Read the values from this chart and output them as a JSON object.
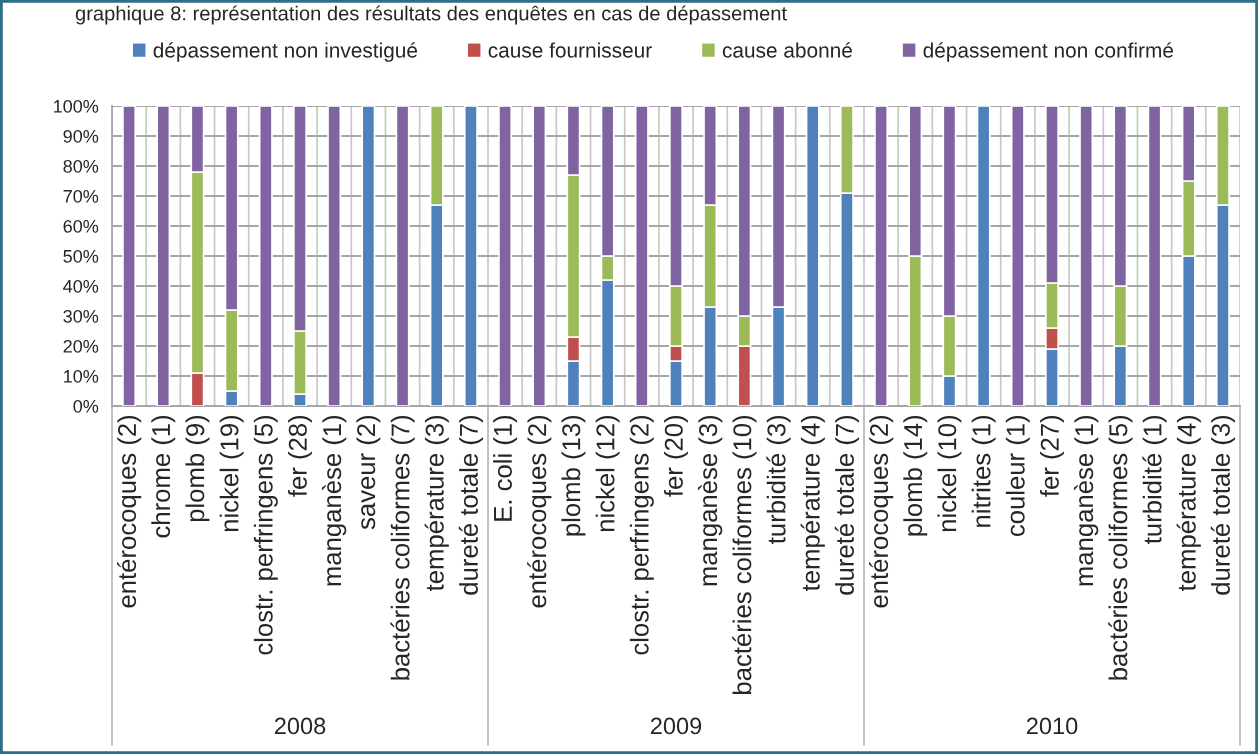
{
  "chart_data": {
    "type": "bar",
    "title": "graphique 8: représentation des résultats des enquêtes en cas de dépassement",
    "stacked": true,
    "categories": [
      "entérocoques (2)",
      "chrome (1)",
      "plomb (9)",
      "nickel (19)",
      "clostr. perfringens (5)",
      "fer (28)",
      "manganèse (1)",
      "saveur (2)",
      "bactéries coliformes (7)",
      "température (3)",
      "dureté totale (7)",
      "E. coli (1)",
      "entérocoques (2)",
      "plomb (13)",
      "nickel (12)",
      "clostr. perfringens (2)",
      "fer (20)",
      "manganèse (3)",
      "bactéries coliformes (10)",
      "turbidité (3)",
      "température (4)",
      "dureté totale (7)",
      "entérocoques (2)",
      "plomb (14)",
      "nickel (10)",
      "nitrites (1)",
      "couleur (1)",
      "fer (27)",
      "manganèse (1)",
      "bactéries coliformes (5)",
      "turbidité (1)",
      "température (4)",
      "dureté totale (3)"
    ],
    "series": [
      {
        "name": "dépassement non investigué",
        "color": "#4f81bd",
        "values": [
          null,
          null,
          null,
          5,
          null,
          4,
          null,
          100,
          null,
          67,
          100,
          null,
          null,
          15,
          42,
          null,
          15,
          33,
          null,
          33,
          100,
          71,
          null,
          null,
          10,
          100,
          null,
          19,
          null,
          20,
          null,
          50,
          67
        ]
      },
      {
        "name": "cause fournisseur",
        "color": "#c0504d",
        "values": [
          null,
          null,
          11,
          null,
          null,
          null,
          null,
          null,
          null,
          null,
          null,
          null,
          null,
          8,
          null,
          null,
          5,
          null,
          20,
          null,
          null,
          null,
          null,
          null,
          null,
          null,
          null,
          7,
          null,
          null,
          null,
          null,
          null
        ]
      },
      {
        "name": "cause abonné",
        "color": "#9bbb59",
        "values": [
          null,
          null,
          67,
          27,
          null,
          21,
          null,
          null,
          null,
          33,
          null,
          null,
          null,
          54,
          8,
          null,
          20,
          34,
          10,
          null,
          null,
          29,
          null,
          50,
          20,
          null,
          null,
          15,
          null,
          20,
          null,
          25,
          33
        ]
      },
      {
        "name": "dépassement non confirmé",
        "color": "#8064a2",
        "values": [
          100,
          100,
          22,
          68,
          100,
          75,
          100,
          null,
          100,
          null,
          null,
          100,
          100,
          23,
          50,
          100,
          60,
          33,
          70,
          67,
          null,
          null,
          100,
          50,
          70,
          null,
          100,
          59,
          100,
          60,
          100,
          25,
          null
        ]
      }
    ],
    "ylim": [
      0,
      100
    ],
    "yticks": [
      {
        "value": 0,
        "label": "0%"
      },
      {
        "value": 10,
        "label": "10%"
      },
      {
        "value": 20,
        "label": "20%"
      },
      {
        "value": 30,
        "label": "30%"
      },
      {
        "value": 40,
        "label": "40%"
      },
      {
        "value": 50,
        "label": "50%"
      },
      {
        "value": 60,
        "label": "60%"
      },
      {
        "value": 70,
        "label": "70%"
      },
      {
        "value": 80,
        "label": "80%"
      },
      {
        "value": 90,
        "label": "90%"
      },
      {
        "value": 100,
        "label": "100%"
      }
    ],
    "grid": true,
    "legend": "top",
    "annotations": [
      "2008",
      "2009",
      "2010"
    ]
  }
}
